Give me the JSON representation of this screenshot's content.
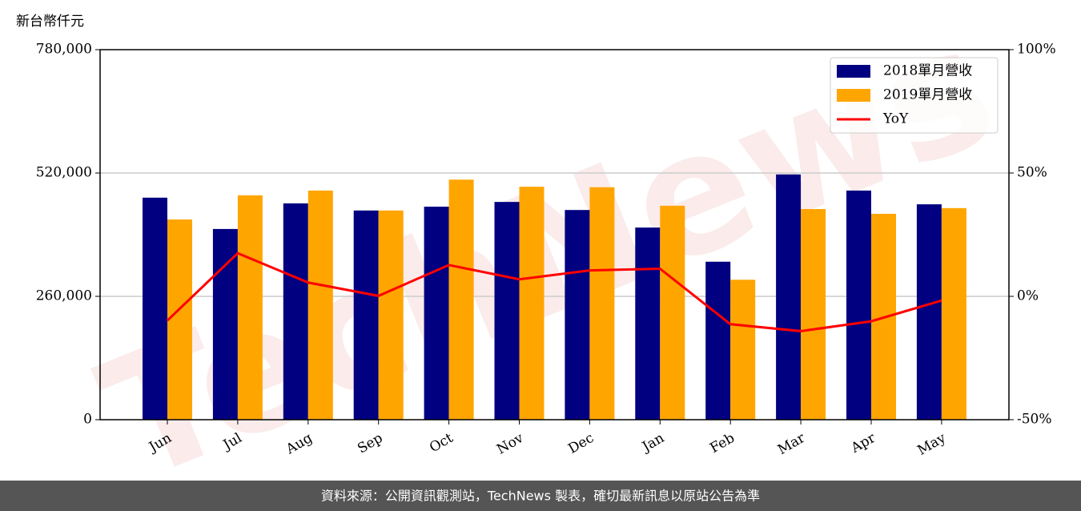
{
  "chart_data": {
    "type": "bar_line",
    "y_label": "新台幣仟元",
    "categories": [
      "Jun",
      "Jul",
      "Aug",
      "Sep",
      "Oct",
      "Nov",
      "Dec",
      "Jan",
      "Feb",
      "Mar",
      "Apr",
      "May"
    ],
    "series": [
      {
        "name": "2018單月營收",
        "type": "bar",
        "color": "#000080",
        "values": [
          468000,
          402000,
          456000,
          441000,
          449000,
          459000,
          442000,
          405000,
          333000,
          517000,
          483000,
          454000
        ]
      },
      {
        "name": "2019單月營收",
        "type": "bar",
        "color": "#ffa500",
        "values": [
          422000,
          473000,
          483000,
          441000,
          506000,
          491000,
          490000,
          451000,
          295000,
          444000,
          434000,
          446000
        ]
      },
      {
        "name": "YoY",
        "type": "line",
        "axis": "y2",
        "color": "#ff0000",
        "values": [
          -9.8,
          17.5,
          5.6,
          0.2,
          12.7,
          6.9,
          10.5,
          11.2,
          -11.3,
          -14.1,
          -10.1,
          -1.7
        ]
      }
    ],
    "ylim": [
      0,
      780000
    ],
    "yticks": [
      0,
      {
        "value": 260000,
        "label": "260,000"
      },
      {
        "value": 520000,
        "label": "520,000"
      },
      {
        "value": 780000,
        "label": "780,000"
      }
    ],
    "y2lim": [
      -50,
      100
    ],
    "y2ticks": [
      {
        "value": -50,
        "label": "-50%"
      },
      {
        "value": 0,
        "label": "0%"
      },
      {
        "value": 50,
        "label": "50%"
      },
      {
        "value": 100,
        "label": "100%"
      }
    ],
    "grid": true,
    "legend": "upper right",
    "watermark": "TechNews",
    "footer": "資料來源：公開資訊觀測站，TechNews 製表，確切最新訊息以原站公告為準"
  }
}
